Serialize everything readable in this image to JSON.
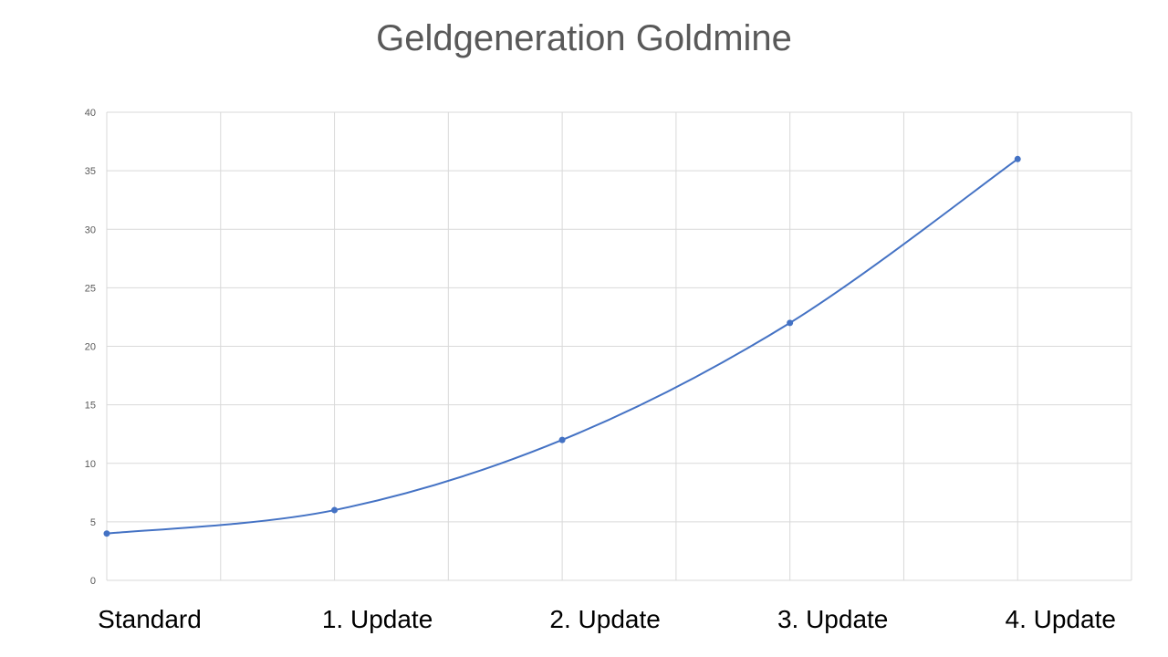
{
  "chart_data": {
    "type": "line",
    "title": "Geldgeneration Goldmine",
    "xlabel": "",
    "ylabel": "",
    "ylim": [
      0,
      40
    ],
    "y_ticks": [
      0,
      5,
      10,
      15,
      20,
      25,
      30,
      35,
      40
    ],
    "x_range": [
      0,
      9
    ],
    "x_vertical_gridlines": [
      0,
      1,
      2,
      3,
      4,
      5,
      6,
      7,
      8,
      9
    ],
    "grid": true,
    "legend": "none",
    "category_labels": [
      {
        "text": "Standard",
        "x": 0
      },
      {
        "text": "1. Update",
        "x": 2
      },
      {
        "text": "2. Update",
        "x": 4
      },
      {
        "text": "3. Update",
        "x": 6
      },
      {
        "text": "4. Update",
        "x": 8
      }
    ],
    "series": [
      {
        "color": "#4472c4",
        "points": [
          {
            "x": 0,
            "y": 4
          },
          {
            "x": 2,
            "y": 6
          },
          {
            "x": 4,
            "y": 12
          },
          {
            "x": 6,
            "y": 22
          },
          {
            "x": 8,
            "y": 36
          }
        ]
      }
    ]
  }
}
